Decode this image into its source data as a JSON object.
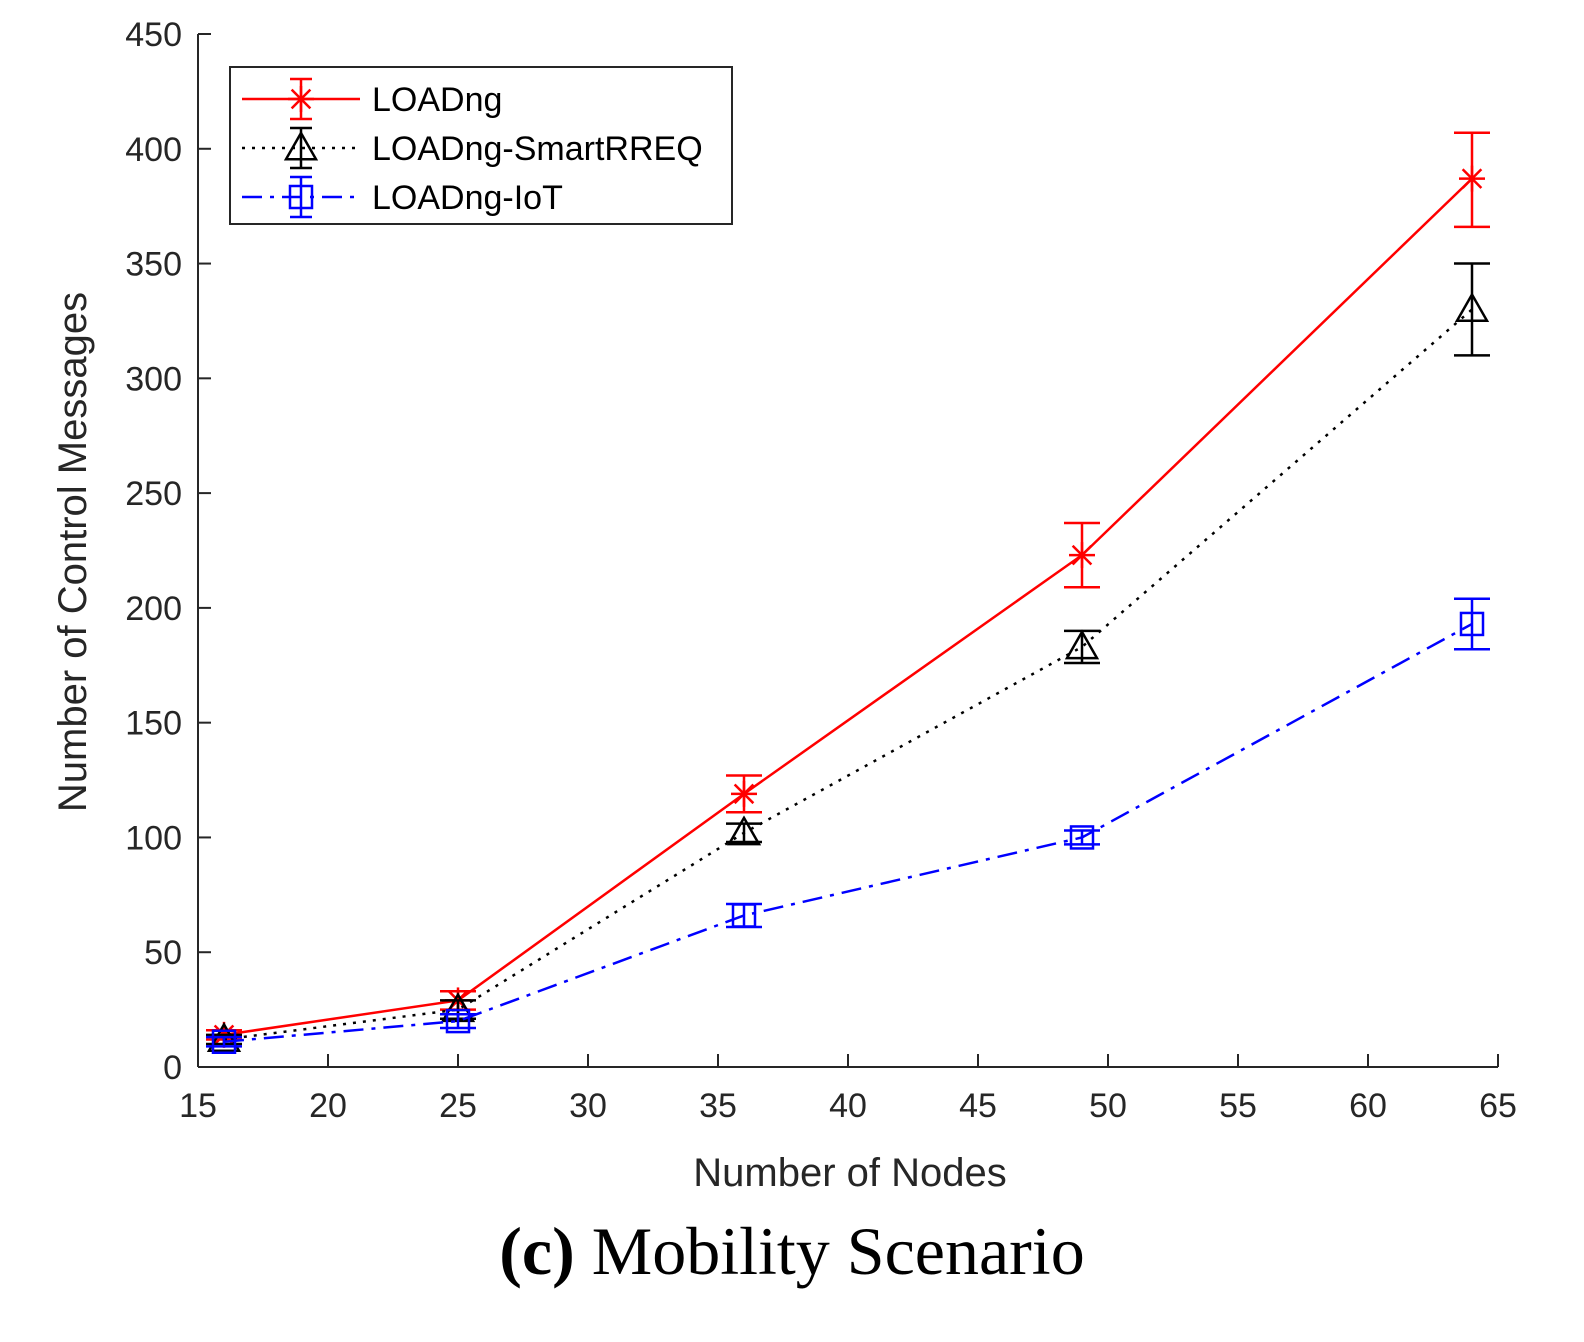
{
  "chart_data": {
    "type": "line",
    "title": "",
    "xlabel": "Number of Nodes",
    "ylabel": "Number of Control Messages",
    "xlim": [
      15,
      65
    ],
    "ylim": [
      0,
      450
    ],
    "xticks": [
      "15",
      "20",
      "25",
      "30",
      "35",
      "40",
      "45",
      "50",
      "55",
      "60",
      "65"
    ],
    "yticks": [
      "0",
      "50",
      "100",
      "150",
      "200",
      "250",
      "300",
      "350",
      "400",
      "450"
    ],
    "x": [
      16,
      25,
      36,
      49,
      64
    ],
    "legend_position": "top-left",
    "grid": false,
    "series": [
      {
        "name": "LOADng",
        "color": "#ff0000",
        "line_style": "solid",
        "marker": "asterisk",
        "values": [
          14,
          29,
          119,
          223,
          387
        ],
        "err_low": [
          12,
          25,
          111,
          209,
          366
        ],
        "err_high": [
          16,
          33,
          127,
          237,
          407
        ]
      },
      {
        "name": "LOADng-SmartRREQ",
        "color": "#000000",
        "line_style": "dotted",
        "marker": "triangle",
        "values": [
          12,
          25,
          102,
          183,
          330
        ],
        "err_low": [
          10,
          21,
          98,
          176,
          310
        ],
        "err_high": [
          14,
          29,
          106,
          190,
          350
        ]
      },
      {
        "name": "LOADng-IoT",
        "color": "#0000ff",
        "line_style": "dash-dot",
        "marker": "square",
        "values": [
          11,
          20,
          66,
          100,
          193
        ],
        "err_low": [
          9,
          17,
          61,
          97,
          182
        ],
        "err_high": [
          13,
          23,
          71,
          103,
          204
        ]
      }
    ]
  },
  "caption": {
    "tag": "(c)",
    "text": "Mobility Scenario"
  }
}
